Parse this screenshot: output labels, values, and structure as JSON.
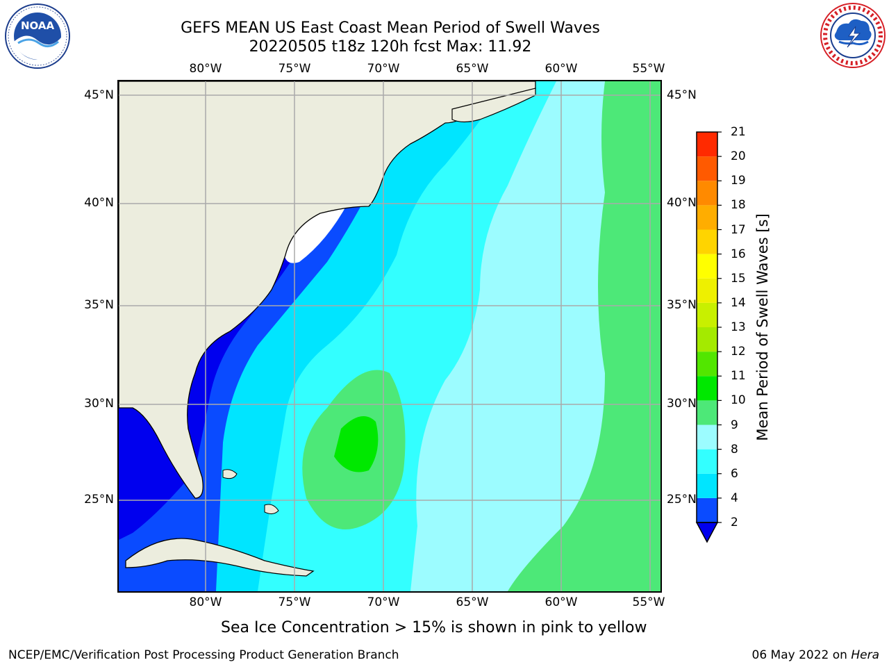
{
  "title": {
    "line1": "GEFS MEAN US East Coast Mean Period of Swell Waves",
    "line2": "20220505 t18z 120h fcst   Max: 11.92"
  },
  "axes": {
    "lon_labels": [
      "80°W",
      "75°W",
      "70°W",
      "65°W",
      "60°W",
      "55°W"
    ],
    "lat_labels": [
      "45°N",
      "40°N",
      "35°N",
      "30°N",
      "25°N"
    ]
  },
  "colorbar": {
    "title": "Mean Period of Swell Waves [s]",
    "ticks": [
      "2",
      "4",
      "6",
      "8",
      "9",
      "10",
      "11",
      "12",
      "13",
      "14",
      "15",
      "16",
      "17",
      "18",
      "19",
      "20",
      "21"
    ],
    "colors": [
      "#0a4bff",
      "#00e5ff",
      "#33ffff",
      "#9cfcff",
      "#4de878",
      "#00e800",
      "#52e600",
      "#a4ea00",
      "#c8f000",
      "#eef000",
      "#ffff00",
      "#ffd400",
      "#ffad00",
      "#ff8a00",
      "#ff5a00",
      "#ff2a00"
    ],
    "under_color": "#0000ee"
  },
  "map_colors": {
    "land": "#ecedde",
    "ocean_white": "#ffffff",
    "deep_blue": "#0000ee",
    "blue": "#0a4bff",
    "cyan": "#00e5ff",
    "aqua": "#33ffff",
    "light_aqua": "#9cfcff",
    "green": "#4de878",
    "bright_green": "#00e800"
  },
  "footer": {
    "note": "Sea Ice Concentration > 15% is shown in pink to yellow",
    "credit": "NCEP/EMC/Verification Post Processing Product Generation Branch",
    "date": "06 May 2022 on",
    "host": "Hera"
  },
  "logos": {
    "left_text": "NOAA",
    "left_ring_text": "NATIONAL OCEANIC AND ATMOSPHERIC ADMINISTRATION · U.S. DEPARTMENT OF COMMERCE",
    "right_ring_text": "NATIONAL WEATHER SERVICE"
  }
}
